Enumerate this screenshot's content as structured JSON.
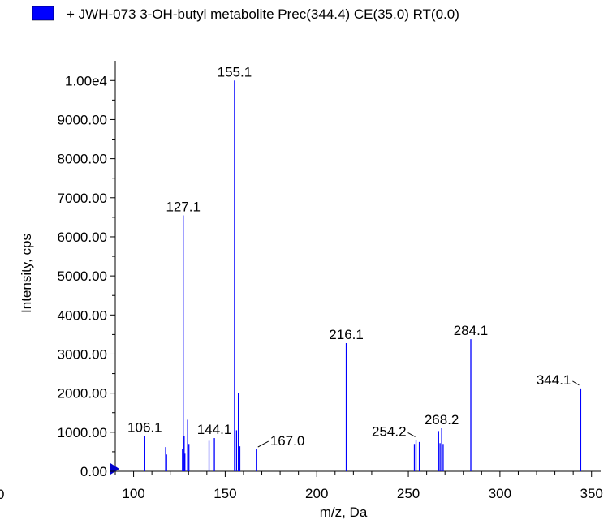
{
  "chart_data": {
    "type": "bar",
    "legend": {
      "label": "+ JWH-073 3-OH-butyl metabolite Prec(344.4) CE(35.0) RT(0.0)",
      "color": "#0000ff",
      "placement": "top"
    },
    "xlabel": "m/z, Da",
    "ylabel": "Intensity, cps",
    "xlim": [
      90,
      355
    ],
    "ylim": [
      0,
      10400
    ],
    "x_ticks": [
      100,
      150,
      200,
      250,
      300,
      350
    ],
    "x_tick_labels": [
      "100",
      "150",
      "200",
      "250",
      "300",
      "350"
    ],
    "x_axis_start_label": "0",
    "y_ticks": [
      0,
      1000,
      2000,
      3000,
      4000,
      5000,
      6000,
      7000,
      8000,
      9000,
      10000
    ],
    "y_tick_labels": [
      "0.00",
      "1000.00",
      "2000.00",
      "3000.00",
      "4000.00",
      "5000.00",
      "6000.00",
      "7000.00",
      "8000.00",
      "9000.00",
      "1.00e4"
    ],
    "series_color": "#0000ff",
    "grid": false,
    "peaks": [
      {
        "x": 106.1,
        "y": 900
      },
      {
        "x": 117.5,
        "y": 620
      },
      {
        "x": 118.0,
        "y": 430
      },
      {
        "x": 126.7,
        "y": 580
      },
      {
        "x": 127.1,
        "y": 6550
      },
      {
        "x": 127.6,
        "y": 900
      },
      {
        "x": 128.0,
        "y": 450
      },
      {
        "x": 129.5,
        "y": 1320
      },
      {
        "x": 130.2,
        "y": 700
      },
      {
        "x": 141.2,
        "y": 780
      },
      {
        "x": 144.1,
        "y": 850
      },
      {
        "x": 155.1,
        "y": 10000
      },
      {
        "x": 156.2,
        "y": 1050
      },
      {
        "x": 157.2,
        "y": 2000
      },
      {
        "x": 158.0,
        "y": 640
      },
      {
        "x": 167.0,
        "y": 560
      },
      {
        "x": 216.1,
        "y": 3280
      },
      {
        "x": 253.3,
        "y": 700
      },
      {
        "x": 254.2,
        "y": 800
      },
      {
        "x": 256.0,
        "y": 750
      },
      {
        "x": 266.5,
        "y": 1030
      },
      {
        "x": 267.3,
        "y": 720
      },
      {
        "x": 268.2,
        "y": 1100
      },
      {
        "x": 269.0,
        "y": 700
      },
      {
        "x": 284.1,
        "y": 3380
      },
      {
        "x": 344.1,
        "y": 2120
      }
    ],
    "annotations": [
      {
        "text": "155.1",
        "x": 155.1,
        "y": 10000,
        "pointer": false
      },
      {
        "text": "127.1",
        "x": 127.1,
        "y": 6550,
        "pointer": false
      },
      {
        "text": "216.1",
        "x": 216.1,
        "y": 3280,
        "pointer": false
      },
      {
        "text": "284.1",
        "x": 284.1,
        "y": 3380,
        "pointer": false
      },
      {
        "text": "344.1",
        "x": 344.1,
        "y": 2120,
        "pointer": true
      },
      {
        "text": "268.2",
        "x": 268.2,
        "y": 1100,
        "pointer": false
      },
      {
        "text": "254.2",
        "x": 254.2,
        "y": 800,
        "pointer": true
      },
      {
        "text": "167.0",
        "x": 167.0,
        "y": 560,
        "pointer": true
      },
      {
        "text": "144.1",
        "x": 144.1,
        "y": 850,
        "pointer": false
      },
      {
        "text": "106.1",
        "x": 106.1,
        "y": 900,
        "pointer": false
      }
    ]
  }
}
